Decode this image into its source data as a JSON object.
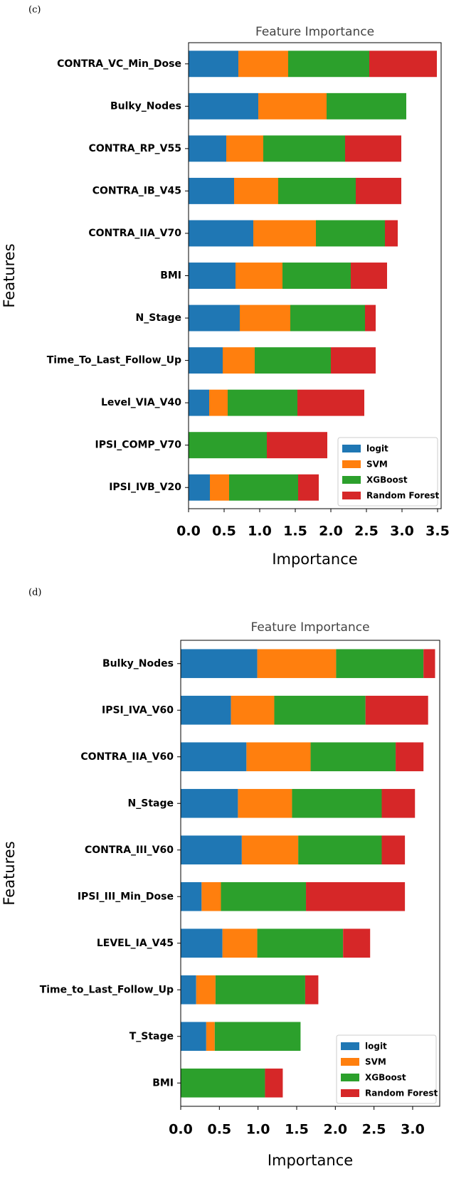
{
  "chart_data": [
    {
      "type": "bar",
      "orientation": "horizontal",
      "stacked": true,
      "panel_label": "(c)",
      "title": "Feature Importance",
      "xlabel": "Importance",
      "ylabel": "Features",
      "categories": [
        "CONTRA_VC_Min_Dose",
        "Bulky_Nodes",
        "CONTRA_RP_V55",
        "CONTRA_IB_V45",
        "CONTRA_IIA_V70",
        "BMI",
        "N_Stage",
        "Time_To_Last_Follow_Up",
        "Level_VIA_V40",
        "IPSI_COMP_V70",
        "IPSI_IVB_V20"
      ],
      "series": [
        {
          "name": "logit",
          "color": "#1f77b4",
          "values": [
            0.7,
            0.98,
            0.53,
            0.64,
            0.91,
            0.66,
            0.72,
            0.48,
            0.29,
            0,
            0.3
          ]
        },
        {
          "name": "SVM",
          "color": "#ff7f0e",
          "values": [
            0.7,
            0.96,
            0.52,
            0.62,
            0.88,
            0.66,
            0.71,
            0.45,
            0.26,
            0,
            0.27
          ]
        },
        {
          "name": "XGBoost",
          "color": "#2ca02c",
          "values": [
            1.14,
            1.12,
            1.15,
            1.09,
            0.97,
            0.96,
            1.05,
            1.07,
            0.98,
            1.1,
            0.97
          ]
        },
        {
          "name": "Random Forest",
          "color": "#d62728",
          "values": [
            0.95,
            0,
            0.79,
            0.64,
            0.18,
            0.51,
            0.15,
            0.63,
            0.94,
            0.85,
            0.29
          ]
        }
      ],
      "xlim": [
        0,
        3.55
      ],
      "xticks": [
        {
          "value": 0,
          "label": "0.0"
        },
        0.5,
        {
          "value": 1,
          "label": "1.0"
        },
        1.5,
        {
          "value": 2,
          "label": "2.0"
        },
        2.5,
        {
          "value": 3,
          "label": "3.0"
        },
        3.5
      ],
      "legend": "lower right",
      "grid": false
    },
    {
      "type": "bar",
      "orientation": "horizontal",
      "stacked": true,
      "panel_label": "(d)",
      "title": "Feature Importance",
      "xlabel": "Importance",
      "ylabel": "Features",
      "categories": [
        "Bulky_Nodes",
        "IPSI_IVA_V60",
        "CONTRA_IIA_V60",
        "N_Stage",
        "CONTRA_III_V60",
        "IPSI_III_Min_Dose",
        "LEVEL_IA_V45",
        "Time_to_Last_Follow_Up",
        "T_Stage",
        "BMI"
      ],
      "series": [
        {
          "name": "logit",
          "color": "#1f77b4",
          "values": [
            0.99,
            0.65,
            0.85,
            0.74,
            0.79,
            0.27,
            0.54,
            0.2,
            0.33,
            0
          ]
        },
        {
          "name": "SVM",
          "color": "#ff7f0e",
          "values": [
            1.02,
            0.56,
            0.83,
            0.7,
            0.73,
            0.25,
            0.45,
            0.25,
            0.11,
            0
          ]
        },
        {
          "name": "XGBoost",
          "color": "#2ca02c",
          "values": [
            1.13,
            1.18,
            1.1,
            1.16,
            1.08,
            1.1,
            1.11,
            1.16,
            1.11,
            1.09
          ]
        },
        {
          "name": "Random Forest",
          "color": "#d62728",
          "values": [
            0.15,
            0.81,
            0.36,
            0.43,
            0.3,
            1.28,
            0.35,
            0.17,
            0,
            0.23
          ]
        }
      ],
      "xlim": [
        0,
        3.35
      ],
      "xticks": [
        {
          "value": 0,
          "label": "0.0"
        },
        0.5,
        {
          "value": 1,
          "label": "1.0"
        },
        1.5,
        {
          "value": 2,
          "label": "2.0"
        },
        2.5,
        {
          "value": 3,
          "label": "3.0"
        }
      ],
      "legend": "lower right",
      "grid": false
    }
  ]
}
